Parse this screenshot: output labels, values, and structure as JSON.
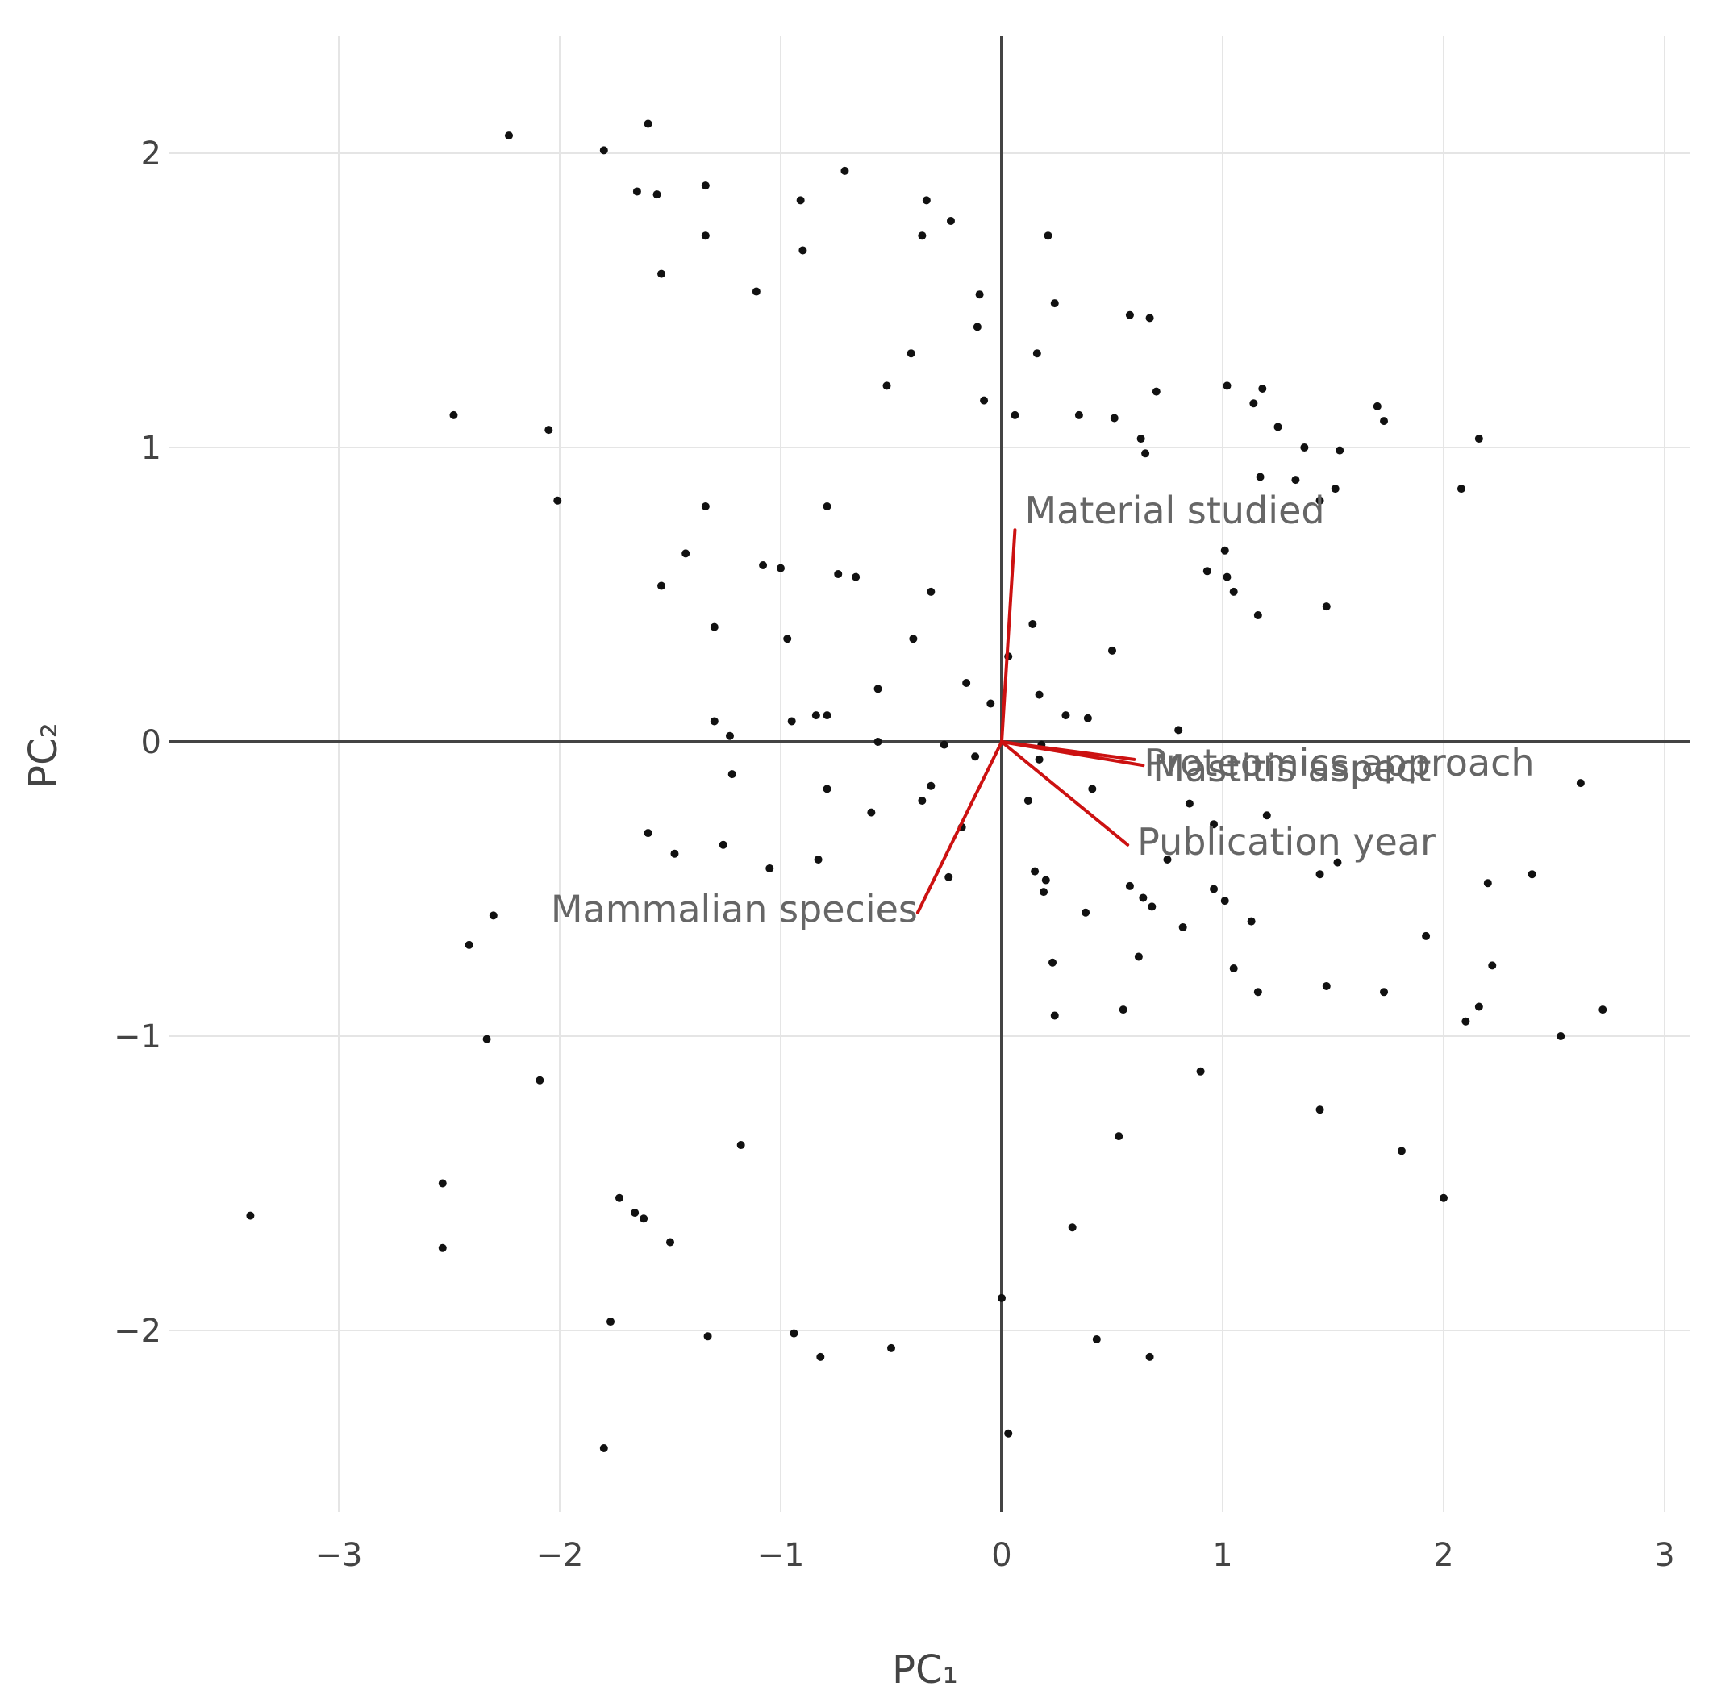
{
  "chart_data": {
    "type": "scatter",
    "xlabel": "PC₁",
    "ylabel": "PC₂",
    "xlim": [
      -3.0,
      3.0
    ],
    "ylim": [
      -2.4,
      2.3
    ],
    "grid": true,
    "x_ticks": [
      -3,
      -2,
      -1,
      0,
      1,
      2,
      3
    ],
    "x_tick_labels": [
      "−3",
      "−2",
      "−1",
      "0",
      "1",
      "2",
      "3"
    ],
    "y_ticks": [
      -2,
      -1,
      0,
      1,
      2
    ],
    "y_tick_labels": [
      "−2",
      "−1",
      "0",
      "1",
      "2"
    ],
    "colors": {
      "points": "#111111",
      "loadings": "#cc1111",
      "grid": "#e5e5e5",
      "zeroline": "#444444",
      "label": "#666666"
    },
    "points": [
      [
        -2.23,
        2.06
      ],
      [
        -1.8,
        2.01
      ],
      [
        -1.6,
        2.1
      ],
      [
        -1.65,
        1.87
      ],
      [
        -1.56,
        1.86
      ],
      [
        -1.34,
        1.89
      ],
      [
        -0.91,
        1.84
      ],
      [
        -0.71,
        1.94
      ],
      [
        -0.34,
        1.84
      ],
      [
        -0.23,
        1.77
      ],
      [
        -1.34,
        1.72
      ],
      [
        -0.9,
        1.67
      ],
      [
        -0.36,
        1.72
      ],
      [
        0.21,
        1.72
      ],
      [
        -1.54,
        1.59
      ],
      [
        -1.11,
        1.53
      ],
      [
        -0.1,
        1.52
      ],
      [
        0.24,
        1.49
      ],
      [
        0.58,
        1.45
      ],
      [
        0.67,
        1.44
      ],
      [
        -0.11,
        1.41
      ],
      [
        -0.41,
        1.32
      ],
      [
        0.16,
        1.32
      ],
      [
        -0.52,
        1.21
      ],
      [
        0.7,
        1.19
      ],
      [
        1.02,
        1.21
      ],
      [
        1.18,
        1.2
      ],
      [
        1.14,
        1.15
      ],
      [
        -0.08,
        1.16
      ],
      [
        0.06,
        1.11
      ],
      [
        0.35,
        1.11
      ],
      [
        0.51,
        1.1
      ],
      [
        1.7,
        1.14
      ],
      [
        1.73,
        1.09
      ],
      [
        1.25,
        1.07
      ],
      [
        -2.48,
        1.11
      ],
      [
        -2.05,
        1.06
      ],
      [
        0.63,
        1.03
      ],
      [
        0.65,
        0.98
      ],
      [
        1.37,
        1.0
      ],
      [
        1.53,
        0.99
      ],
      [
        2.16,
        1.03
      ],
      [
        1.17,
        0.9
      ],
      [
        1.33,
        0.89
      ],
      [
        1.51,
        0.86
      ],
      [
        2.08,
        0.86
      ],
      [
        -2.01,
        0.82
      ],
      [
        1.44,
        0.82
      ],
      [
        -1.34,
        0.8
      ],
      [
        -0.79,
        0.8
      ],
      [
        -1.43,
        0.64
      ],
      [
        -1.08,
        0.6
      ],
      [
        -1.0,
        0.59
      ],
      [
        -0.74,
        0.57
      ],
      [
        -0.66,
        0.56
      ],
      [
        1.01,
        0.65
      ],
      [
        0.93,
        0.58
      ],
      [
        1.02,
        0.56
      ],
      [
        1.05,
        0.51
      ],
      [
        -1.54,
        0.53
      ],
      [
        -0.32,
        0.51
      ],
      [
        1.47,
        0.46
      ],
      [
        1.16,
        0.43
      ],
      [
        -1.3,
        0.39
      ],
      [
        -0.97,
        0.35
      ],
      [
        -0.4,
        0.35
      ],
      [
        0.14,
        0.4
      ],
      [
        0.5,
        0.31
      ],
      [
        0.03,
        0.29
      ],
      [
        -0.56,
        0.18
      ],
      [
        -0.16,
        0.2
      ],
      [
        0.17,
        0.16
      ],
      [
        -0.05,
        0.13
      ],
      [
        -0.84,
        0.09
      ],
      [
        -0.79,
        0.09
      ],
      [
        -0.95,
        0.07
      ],
      [
        -1.3,
        0.07
      ],
      [
        0.29,
        0.09
      ],
      [
        0.39,
        0.08
      ],
      [
        0.8,
        0.04
      ],
      [
        -1.23,
        0.02
      ],
      [
        -0.56,
        0.0
      ],
      [
        -0.26,
        -0.01
      ],
      [
        0.18,
        -0.01
      ],
      [
        -0.12,
        -0.05
      ],
      [
        0.17,
        -0.06
      ],
      [
        -1.22,
        -0.11
      ],
      [
        -0.79,
        -0.16
      ],
      [
        -0.32,
        -0.15
      ],
      [
        0.41,
        -0.16
      ],
      [
        -0.36,
        -0.2
      ],
      [
        0.12,
        -0.2
      ],
      [
        0.85,
        -0.21
      ],
      [
        1.2,
        -0.25
      ],
      [
        2.62,
        -0.14
      ],
      [
        -0.59,
        -0.24
      ],
      [
        -0.18,
        -0.29
      ],
      [
        0.96,
        -0.28
      ],
      [
        -1.6,
        -0.31
      ],
      [
        -1.26,
        -0.35
      ],
      [
        -1.48,
        -0.38
      ],
      [
        -0.83,
        -0.4
      ],
      [
        0.75,
        -0.4
      ],
      [
        1.52,
        -0.41
      ],
      [
        -1.05,
        -0.43
      ],
      [
        0.15,
        -0.44
      ],
      [
        0.2,
        -0.47
      ],
      [
        0.19,
        -0.51
      ],
      [
        0.58,
        -0.49
      ],
      [
        0.64,
        -0.53
      ],
      [
        0.68,
        -0.56
      ],
      [
        0.96,
        -0.5
      ],
      [
        1.01,
        -0.54
      ],
      [
        -0.24,
        -0.46
      ],
      [
        1.44,
        -0.45
      ],
      [
        2.4,
        -0.45
      ],
      [
        2.2,
        -0.48
      ],
      [
        0.38,
        -0.58
      ],
      [
        1.13,
        -0.61
      ],
      [
        0.82,
        -0.63
      ],
      [
        -2.3,
        -0.59
      ],
      [
        -2.41,
        -0.69
      ],
      [
        1.92,
        -0.66
      ],
      [
        0.62,
        -0.73
      ],
      [
        0.23,
        -0.75
      ],
      [
        1.05,
        -0.77
      ],
      [
        2.22,
        -0.76
      ],
      [
        1.47,
        -0.83
      ],
      [
        1.16,
        -0.85
      ],
      [
        1.73,
        -0.85
      ],
      [
        0.55,
        -0.91
      ],
      [
        0.24,
        -0.93
      ],
      [
        2.16,
        -0.9
      ],
      [
        2.1,
        -0.95
      ],
      [
        2.72,
        -0.91
      ],
      [
        -2.33,
        -1.01
      ],
      [
        2.53,
        -1.0
      ],
      [
        -2.09,
        -1.15
      ],
      [
        0.9,
        -1.12
      ],
      [
        1.44,
        -1.25
      ],
      [
        0.53,
        -1.34
      ],
      [
        -1.18,
        -1.37
      ],
      [
        1.81,
        -1.39
      ],
      [
        -2.53,
        -1.5
      ],
      [
        -1.73,
        -1.55
      ],
      [
        -1.66,
        -1.6
      ],
      [
        -1.62,
        -1.62
      ],
      [
        2.0,
        -1.55
      ],
      [
        -3.4,
        -1.61
      ],
      [
        -2.53,
        -1.72
      ],
      [
        -1.5,
        -1.7
      ],
      [
        0.32,
        -1.65
      ],
      [
        0.0,
        -1.89
      ],
      [
        -1.77,
        -1.97
      ],
      [
        -1.33,
        -2.02
      ],
      [
        -0.94,
        -2.01
      ],
      [
        0.43,
        -2.03
      ],
      [
        -0.5,
        -2.06
      ],
      [
        -0.82,
        -2.09
      ],
      [
        0.67,
        -2.09
      ],
      [
        -1.8,
        -2.4
      ],
      [
        0.03,
        -2.35
      ]
    ],
    "loadings": [
      {
        "name": "Material studied",
        "x": 0.06,
        "y": 0.72
      },
      {
        "name": "Mastitis aspect",
        "x": 0.64,
        "y": -0.08
      },
      {
        "name": "Proteomics approach",
        "x": 0.6,
        "y": -0.06
      },
      {
        "name": "Publication year",
        "x": 0.57,
        "y": -0.35
      },
      {
        "name": "Mammalian species",
        "x": -0.38,
        "y": -0.58
      }
    ]
  }
}
